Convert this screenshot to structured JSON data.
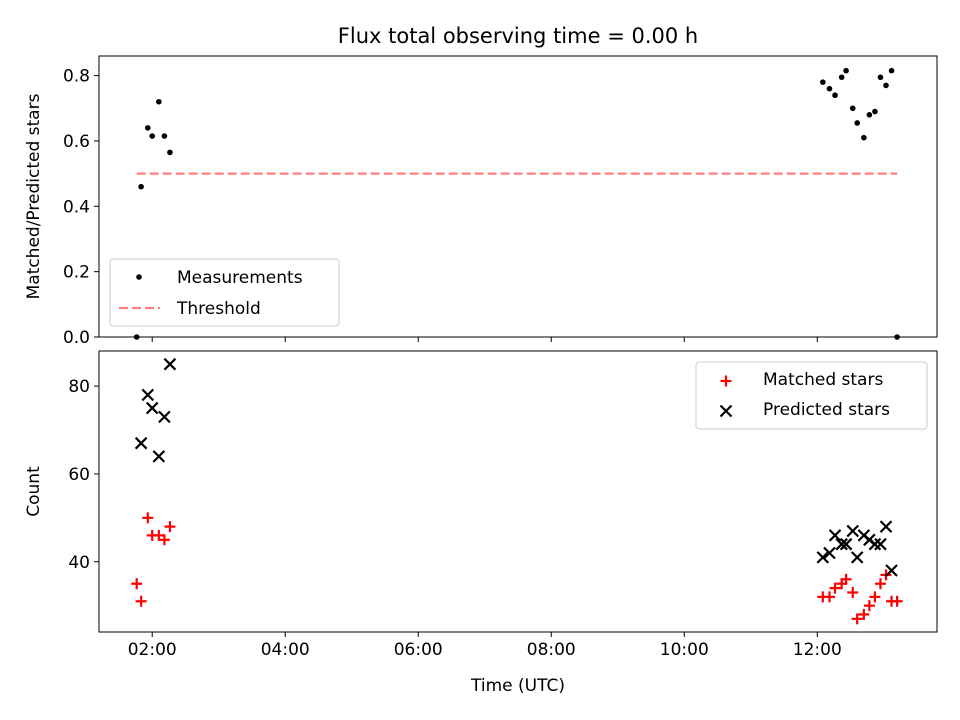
{
  "chart_data": [
    {
      "type": "scatter",
      "title": "Flux total observing time = 0.00 h",
      "xlabel": "",
      "ylabel": "Matched/Predicted stars",
      "ylim": [
        0,
        0.86
      ],
      "yticks": [
        0.0,
        0.2,
        0.4,
        0.6,
        0.8
      ],
      "ytick_labels": [
        "0.0",
        "0.2",
        "0.4",
        "0.6",
        "0.8"
      ],
      "xlim": [
        "01:12",
        "13:48"
      ],
      "xticks": [
        "02:00",
        "04:00",
        "06:00",
        "08:00",
        "10:00",
        "12:00"
      ],
      "legend_position": "lower-left",
      "series": [
        {
          "name": "Measurements",
          "kind": "scatter",
          "marker": "dot",
          "color": "#000000",
          "points": [
            [
              "01:46",
              0.0
            ],
            [
              "01:50",
              0.46
            ],
            [
              "01:56",
              0.64
            ],
            [
              "02:00",
              0.615
            ],
            [
              "02:06",
              0.72
            ],
            [
              "02:11",
              0.615
            ],
            [
              "02:16",
              0.565
            ],
            [
              "12:05",
              0.78
            ],
            [
              "12:11",
              0.76
            ],
            [
              "12:16",
              0.74
            ],
            [
              "12:22",
              0.795
            ],
            [
              "12:26",
              0.815
            ],
            [
              "12:32",
              0.7
            ],
            [
              "12:36",
              0.655
            ],
            [
              "12:42",
              0.61
            ],
            [
              "12:47",
              0.68
            ],
            [
              "12:52",
              0.69
            ],
            [
              "12:57",
              0.795
            ],
            [
              "13:02",
              0.77
            ],
            [
              "13:07",
              0.815
            ],
            [
              "13:12",
              0.0
            ]
          ]
        },
        {
          "name": "Threshold",
          "kind": "line",
          "style": "dashed",
          "color": "#ff7f7f",
          "x": [
            "01:46",
            "13:12"
          ],
          "y": [
            0.5,
            0.5
          ]
        }
      ]
    },
    {
      "type": "scatter",
      "title": "",
      "xlabel": "Time (UTC)",
      "ylabel": "Count",
      "ylim": [
        24,
        88
      ],
      "yticks": [
        40,
        60,
        80
      ],
      "ytick_labels": [
        "40",
        "60",
        "80"
      ],
      "xlim": [
        "01:12",
        "13:48"
      ],
      "xticks": [
        "02:00",
        "04:00",
        "06:00",
        "08:00",
        "10:00",
        "12:00"
      ],
      "legend_position": "upper-right",
      "series": [
        {
          "name": "Matched stars",
          "marker": "plus",
          "color": "#ff0000",
          "points": [
            [
              "01:46",
              35
            ],
            [
              "01:50",
              31
            ],
            [
              "01:56",
              50
            ],
            [
              "02:00",
              46
            ],
            [
              "02:06",
              46
            ],
            [
              "02:11",
              45
            ],
            [
              "02:16",
              48
            ],
            [
              "12:05",
              32
            ],
            [
              "12:11",
              32
            ],
            [
              "12:16",
              34
            ],
            [
              "12:22",
              35
            ],
            [
              "12:26",
              36
            ],
            [
              "12:32",
              33
            ],
            [
              "12:36",
              27
            ],
            [
              "12:42",
              28
            ],
            [
              "12:47",
              30
            ],
            [
              "12:52",
              32
            ],
            [
              "12:57",
              35
            ],
            [
              "13:02",
              37
            ],
            [
              "13:07",
              31
            ],
            [
              "13:12",
              31
            ]
          ]
        },
        {
          "name": "Predicted stars",
          "marker": "x",
          "color": "#000000",
          "points": [
            [
              "01:50",
              67
            ],
            [
              "01:56",
              78
            ],
            [
              "02:00",
              75
            ],
            [
              "02:06",
              64
            ],
            [
              "02:11",
              73
            ],
            [
              "02:16",
              85
            ],
            [
              "12:05",
              41
            ],
            [
              "12:11",
              42
            ],
            [
              "12:16",
              46
            ],
            [
              "12:22",
              44
            ],
            [
              "12:26",
              44
            ],
            [
              "12:32",
              47
            ],
            [
              "12:36",
              41
            ],
            [
              "12:42",
              46
            ],
            [
              "12:47",
              45
            ],
            [
              "12:52",
              44
            ],
            [
              "12:57",
              44
            ],
            [
              "13:02",
              48
            ],
            [
              "13:07",
              38
            ]
          ]
        }
      ]
    }
  ]
}
